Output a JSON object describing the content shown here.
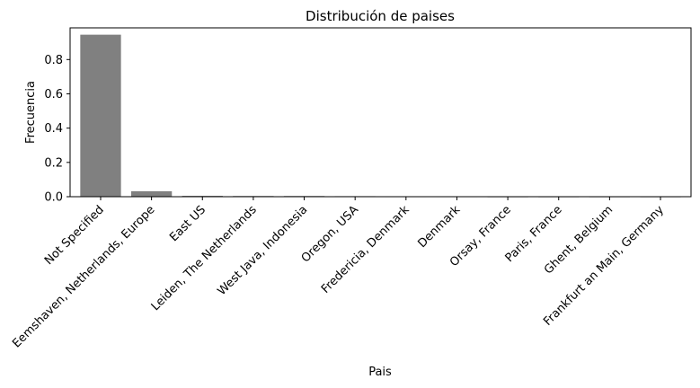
{
  "chart_data": {
    "type": "bar",
    "title": "Distribución de paises",
    "xlabel": "Pais",
    "ylabel": "Frecuencia",
    "categories": [
      "Not Specified",
      "Eemshaven, Netherlands, Europe",
      "East US",
      "Leiden, The Netherlands",
      "West Java, Indonesia",
      "Oregon, USA",
      "Fredericia, Denmark",
      "Denmark",
      "Orsay, France",
      "Paris, France",
      "Ghent, Belgium",
      "Frankfurt an Main, Germany"
    ],
    "values": [
      0.945,
      0.032,
      0.005,
      0.004,
      0.004,
      0.003,
      0.0015,
      0.0015,
      0.001,
      0.001,
      0.001,
      0.001
    ],
    "ylim": [
      0,
      0.985
    ],
    "yticks": [
      "0.0",
      "0.2",
      "0.4",
      "0.6",
      "0.8"
    ],
    "ytick_values": [
      0,
      0.2,
      0.4,
      0.6,
      0.8
    ],
    "bar_color": "#808080",
    "grid": false,
    "legend": "none"
  }
}
